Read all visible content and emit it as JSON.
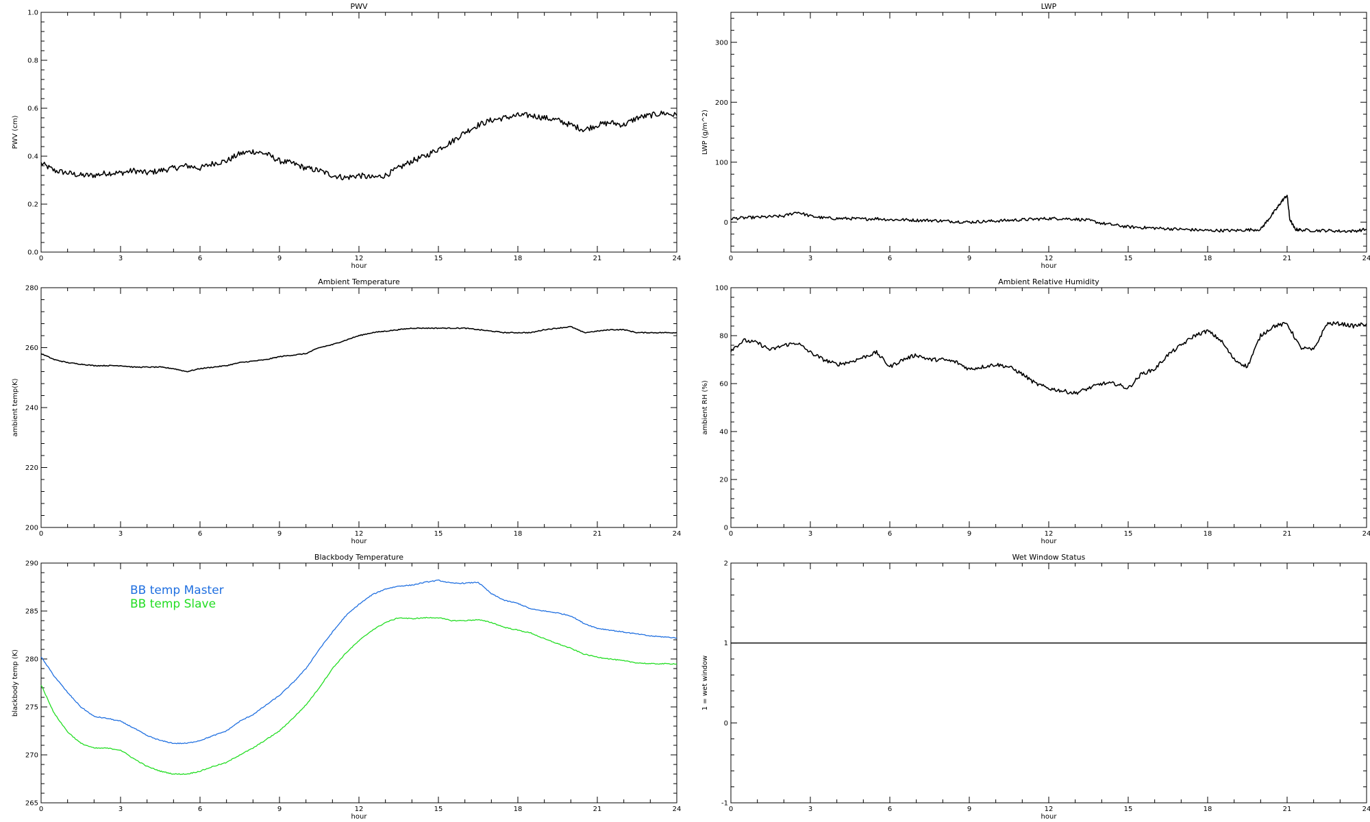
{
  "chart_data": [
    {
      "type": "line",
      "title": "PWV",
      "xlabel": "hour",
      "ylabel": "PWV (cm)",
      "xlim": [
        0,
        24
      ],
      "ylim": [
        0.0,
        1.0
      ],
      "xticks": [
        "0",
        "3",
        "6",
        "9",
        "12",
        "15",
        "18",
        "21",
        "24"
      ],
      "yticks": [
        "0.0",
        "0.2",
        "0.4",
        "0.6",
        "0.8",
        "1.0"
      ],
      "grid": false,
      "series": [
        {
          "color": "#000000",
          "noise": 0.012,
          "x": [
            0,
            0.5,
            1,
            1.5,
            2,
            2.5,
            3,
            3.5,
            4,
            4.5,
            5,
            5.5,
            6,
            6.5,
            7,
            7.5,
            8,
            8.5,
            9,
            9.5,
            10,
            10.5,
            11,
            11.5,
            12,
            12.5,
            13,
            13.5,
            14,
            14.5,
            15,
            15.5,
            16,
            16.5,
            17,
            17.5,
            18,
            18.5,
            19,
            19.5,
            20,
            20.5,
            21,
            21.5,
            22,
            22.5,
            23,
            23.5,
            24
          ],
          "y": [
            0.37,
            0.34,
            0.33,
            0.32,
            0.32,
            0.33,
            0.33,
            0.34,
            0.33,
            0.34,
            0.35,
            0.36,
            0.35,
            0.37,
            0.38,
            0.41,
            0.42,
            0.41,
            0.38,
            0.37,
            0.35,
            0.34,
            0.32,
            0.31,
            0.32,
            0.31,
            0.32,
            0.35,
            0.38,
            0.4,
            0.43,
            0.46,
            0.5,
            0.53,
            0.55,
            0.56,
            0.57,
            0.57,
            0.56,
            0.55,
            0.53,
            0.51,
            0.53,
            0.54,
            0.53,
            0.56,
            0.57,
            0.58,
            0.57
          ]
        }
      ]
    },
    {
      "type": "line",
      "title": "LWP",
      "xlabel": "hour",
      "ylabel": "LWP (g/m^2)",
      "xlim": [
        0,
        24
      ],
      "ylim": [
        -50,
        350
      ],
      "xticks": [
        "0",
        "3",
        "6",
        "9",
        "12",
        "15",
        "18",
        "21",
        "24"
      ],
      "yticks": [
        "0",
        "100",
        "200",
        "300"
      ],
      "ytick_values": [
        0,
        100,
        200,
        300
      ],
      "grid": false,
      "series": [
        {
          "color": "#000000",
          "noise": 2.5,
          "x": [
            0,
            0.5,
            1,
            1.5,
            2,
            2.5,
            3,
            3.5,
            4,
            4.5,
            5,
            5.5,
            6,
            6.5,
            7,
            7.5,
            8,
            8.5,
            9,
            9.5,
            10,
            10.5,
            11,
            11.5,
            12,
            12.5,
            13,
            13.5,
            14,
            14.5,
            15,
            15.5,
            16,
            16.5,
            17,
            17.5,
            18,
            18.5,
            19,
            19.5,
            20,
            20.3,
            20.6,
            20.8,
            21,
            21.1,
            21.3,
            21.5,
            22,
            22.5,
            23,
            23.5,
            24
          ],
          "y": [
            6,
            7,
            8,
            9,
            10,
            17,
            10,
            7,
            6,
            6,
            5,
            6,
            4,
            4,
            3,
            3,
            2,
            1,
            0,
            1,
            2,
            3,
            4,
            5,
            6,
            6,
            5,
            3,
            -2,
            -5,
            -8,
            -9,
            -10,
            -11,
            -12,
            -13,
            -14,
            -14,
            -14,
            -13,
            -12,
            5,
            22,
            35,
            45,
            5,
            -12,
            -13,
            -14,
            -14,
            -15,
            -15,
            -12
          ]
        }
      ]
    },
    {
      "type": "line",
      "title": "Ambient Temperature",
      "xlabel": "hour",
      "ylabel": "ambient temp(K)",
      "xlim": [
        0,
        24
      ],
      "ylim": [
        200,
        280
      ],
      "xticks": [
        "0",
        "3",
        "6",
        "9",
        "12",
        "15",
        "18",
        "21",
        "24"
      ],
      "yticks": [
        "200",
        "220",
        "240",
        "260",
        "280"
      ],
      "grid": false,
      "series": [
        {
          "color": "#000000",
          "noise": 0.15,
          "x": [
            0,
            0.5,
            1,
            1.5,
            2,
            2.5,
            3,
            3.5,
            4,
            4.5,
            5,
            5.5,
            6,
            6.5,
            7,
            7.5,
            8,
            8.5,
            9,
            9.5,
            10,
            10.5,
            11,
            11.5,
            12,
            12.5,
            13,
            13.5,
            14,
            14.5,
            15,
            15.5,
            16,
            16.5,
            17,
            17.5,
            18,
            18.5,
            19,
            19.5,
            20,
            20.5,
            21,
            21.5,
            22,
            22.5,
            23,
            23.5,
            24
          ],
          "y": [
            258,
            256,
            255,
            254.5,
            254,
            254,
            254,
            253.5,
            253.5,
            253.5,
            253,
            252,
            253,
            253.5,
            254,
            255,
            255.5,
            256,
            257,
            257.5,
            258,
            260,
            261,
            262.5,
            264,
            265,
            265.5,
            266,
            266.5,
            266.5,
            266.5,
            266.5,
            266.5,
            266,
            265.5,
            265,
            265,
            265,
            266,
            266.5,
            267,
            265,
            265.5,
            266,
            266,
            265,
            265,
            265,
            265
          ]
        }
      ]
    },
    {
      "type": "line",
      "title": "Ambient Relative Humidity",
      "xlabel": "hour",
      "ylabel": "ambient RH (%)",
      "xlim": [
        0,
        24
      ],
      "ylim": [
        0,
        100
      ],
      "xticks": [
        "0",
        "3",
        "6",
        "9",
        "12",
        "15",
        "18",
        "21",
        "24"
      ],
      "yticks": [
        "0",
        "20",
        "40",
        "60",
        "80",
        "100"
      ],
      "grid": false,
      "series": [
        {
          "color": "#000000",
          "noise": 0.8,
          "x": [
            0,
            0.5,
            1,
            1.5,
            2,
            2.5,
            3,
            3.5,
            4,
            4.5,
            5,
            5.5,
            6,
            6.5,
            7,
            7.5,
            8,
            8.5,
            9,
            9.5,
            10,
            10.5,
            11,
            11.5,
            12,
            12.5,
            13,
            13.5,
            14,
            14.5,
            15,
            15.5,
            16,
            16.5,
            17,
            17.5,
            18,
            18.5,
            19,
            19.5,
            20,
            20.5,
            21,
            21.5,
            22,
            22.5,
            23,
            23.5,
            24
          ],
          "y": [
            74,
            78,
            77,
            74,
            76,
            77,
            73,
            70,
            68,
            69,
            71,
            73,
            67,
            70,
            72,
            70,
            70,
            69,
            66,
            67,
            68,
            67,
            64,
            60,
            58,
            57,
            56,
            58,
            60,
            60,
            58,
            64,
            66,
            72,
            76,
            80,
            82,
            78,
            70,
            67,
            80,
            84,
            85,
            75,
            74,
            85,
            85,
            84,
            85
          ]
        }
      ]
    },
    {
      "type": "line",
      "title": "Blackbody Temperature",
      "xlabel": "hour",
      "ylabel": "blackbody temp (K)",
      "xlim": [
        0,
        24
      ],
      "ylim": [
        265,
        290
      ],
      "xticks": [
        "0",
        "3",
        "6",
        "9",
        "12",
        "15",
        "18",
        "21",
        "24"
      ],
      "yticks": [
        "265",
        "270",
        "275",
        "280",
        "285",
        "290"
      ],
      "grid": false,
      "legend": {
        "placement": "top-left"
      },
      "series": [
        {
          "name": "BB temp Master",
          "color": "#1f6fe0",
          "noise": 0.05,
          "x": [
            0,
            0.5,
            1,
            1.5,
            2,
            2.5,
            3,
            3.5,
            4,
            4.5,
            5,
            5.5,
            6,
            6.5,
            7,
            7.5,
            8,
            8.5,
            9,
            9.5,
            10,
            10.5,
            11,
            11.5,
            12,
            12.5,
            13,
            13.5,
            14,
            14.5,
            15,
            15.5,
            16,
            16.5,
            17,
            17.5,
            18,
            18.5,
            19,
            19.5,
            20,
            20.5,
            21,
            21.5,
            22,
            22.5,
            23,
            23.5,
            24
          ],
          "y": [
            280.2,
            278.2,
            276.5,
            275,
            274,
            273.8,
            273.5,
            272.8,
            272,
            271.5,
            271.2,
            271.2,
            271.5,
            272,
            272.5,
            273.5,
            274.2,
            275.2,
            276.2,
            277.5,
            279,
            281,
            282.8,
            284.5,
            285.7,
            286.7,
            287.3,
            287.6,
            287.7,
            288,
            288.2,
            287.9,
            287.9,
            288,
            286.8,
            286.1,
            285.8,
            285.2,
            285,
            284.8,
            284.5,
            283.7,
            283.2,
            283,
            282.8,
            282.6,
            282.4,
            282.3,
            282.2
          ]
        },
        {
          "name": "BB temp Slave",
          "color": "#22dd22",
          "noise": 0.05,
          "x": [
            0,
            0.5,
            1,
            1.5,
            2,
            2.5,
            3,
            3.5,
            4,
            4.5,
            5,
            5.5,
            6,
            6.5,
            7,
            7.5,
            8,
            8.5,
            9,
            9.5,
            10,
            10.5,
            11,
            11.5,
            12,
            12.5,
            13,
            13.5,
            14,
            14.5,
            15,
            15.5,
            16,
            16.5,
            17,
            17.5,
            18,
            18.5,
            19,
            19.5,
            20,
            20.5,
            21,
            21.5,
            22,
            22.5,
            23,
            23.5,
            24
          ],
          "y": [
            277.3,
            274.3,
            272.4,
            271.2,
            270.7,
            270.7,
            270.5,
            269.6,
            268.8,
            268.3,
            268,
            268,
            268.3,
            268.8,
            269.2,
            270,
            270.7,
            271.6,
            272.5,
            273.8,
            275.2,
            277,
            279,
            280.6,
            281.9,
            283,
            283.8,
            284.3,
            284.2,
            284.3,
            284.3,
            284,
            284,
            284.1,
            283.8,
            283.3,
            283,
            282.7,
            282.1,
            281.6,
            281.1,
            280.5,
            280.2,
            280,
            279.8,
            279.6,
            279.5,
            279.5,
            279.5
          ]
        }
      ]
    },
    {
      "type": "line",
      "title": "Wet Window Status",
      "xlabel": "hour",
      "ylabel": "1 = wet window",
      "xlim": [
        0,
        24
      ],
      "ylim": [
        -1,
        2
      ],
      "xticks": [
        "0",
        "3",
        "6",
        "9",
        "12",
        "15",
        "18",
        "21",
        "24"
      ],
      "yticks": [
        "-1",
        "0",
        "1",
        "2"
      ],
      "grid": false,
      "series": [
        {
          "color": "#000000",
          "noise": 0,
          "x": [
            0,
            24
          ],
          "y": [
            1,
            1
          ]
        }
      ]
    }
  ]
}
